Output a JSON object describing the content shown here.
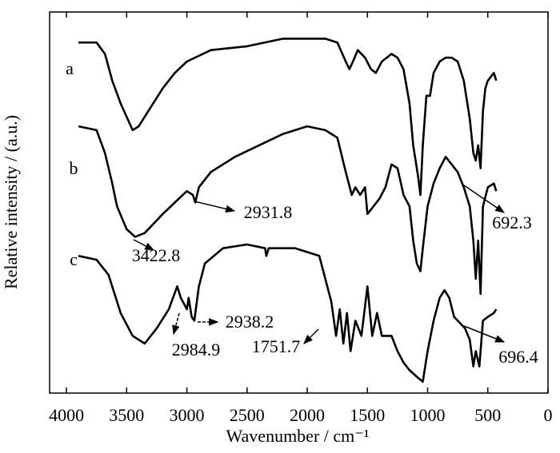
{
  "chart_data": {
    "type": "line",
    "x_label": "Wavenumber / cm⁻¹",
    "y_label": "Relative intensity / (a.u.)",
    "xlim": [
      4140,
      0
    ],
    "ylim": [
      0,
      100
    ],
    "xticks": [
      4000,
      3500,
      3000,
      2500,
      2000,
      1500,
      1000,
      500,
      0
    ],
    "series": [
      {
        "name": "a",
        "color": "#000000",
        "x": [
          3900,
          3750,
          3680,
          3620,
          3550,
          3450,
          3400,
          3300,
          3200,
          3100,
          3000,
          2800,
          2500,
          2200,
          2000,
          1850,
          1750,
          1680,
          1650,
          1620,
          1580,
          1520,
          1470,
          1430,
          1380,
          1300,
          1250,
          1200,
          1150,
          1120,
          1080,
          1060,
          1040,
          1010,
          980,
          950,
          900,
          850,
          800,
          750,
          700,
          650,
          620,
          600,
          580,
          560,
          540,
          520,
          500,
          450,
          430
        ],
        "values": [
          92,
          92,
          89,
          82,
          76,
          69,
          70,
          75,
          80,
          84,
          87,
          90,
          91,
          93,
          93,
          93,
          92,
          87,
          85,
          87,
          90,
          88,
          85,
          84,
          87,
          89,
          88,
          85,
          76,
          65,
          57,
          52,
          65,
          78,
          78,
          84,
          87,
          88,
          88,
          87,
          82,
          72,
          63,
          61,
          65,
          59,
          74,
          80,
          82,
          84,
          82
        ]
      },
      {
        "name": "b",
        "color": "#000000",
        "x": [
          3900,
          3750,
          3680,
          3620,
          3580,
          3500,
          3430,
          3350,
          3200,
          3100,
          3000,
          2950,
          2930,
          2900,
          2800,
          2600,
          2400,
          2200,
          2000,
          1850,
          1750,
          1680,
          1630,
          1600,
          1560,
          1520,
          1500,
          1450,
          1400,
          1350,
          1300,
          1250,
          1200,
          1150,
          1120,
          1090,
          1060,
          1040,
          1000,
          950,
          900,
          850,
          800,
          750,
          700,
          650,
          620,
          600,
          580,
          560,
          540,
          500,
          450,
          430
        ],
        "values": [
          70,
          69,
          63,
          55,
          49,
          43,
          41,
          42,
          47,
          50,
          53,
          52,
          50,
          54,
          58,
          62,
          65,
          68,
          70,
          69,
          67,
          58,
          52,
          54,
          52,
          54,
          47,
          49,
          51,
          54,
          60,
          59,
          52,
          49,
          40,
          34,
          32,
          38,
          49,
          55,
          59,
          62,
          60,
          58,
          54,
          49,
          40,
          30,
          40,
          26,
          49,
          54,
          55,
          53
        ]
      },
      {
        "name": "c",
        "color": "#000000",
        "x": [
          3900,
          3750,
          3650,
          3550,
          3450,
          3350,
          3250,
          3150,
          3080,
          3050,
          3000,
          2985,
          2960,
          2938,
          2900,
          2850,
          2700,
          2500,
          2350,
          2340,
          2320,
          2100,
          1900,
          1800,
          1760,
          1730,
          1700,
          1670,
          1640,
          1600,
          1550,
          1500,
          1460,
          1420,
          1380,
          1300,
          1250,
          1200,
          1150,
          1080,
          1040,
          1000,
          950,
          900,
          860,
          820,
          780,
          720,
          690,
          650,
          620,
          600,
          570,
          540,
          500,
          450,
          430
        ],
        "values": [
          36,
          35,
          31,
          21,
          15,
          13,
          17,
          22,
          28,
          25,
          22,
          25,
          20,
          19,
          28,
          34,
          38,
          39,
          38,
          36,
          38,
          38,
          36,
          24,
          15,
          22,
          13,
          21,
          11,
          19,
          15,
          28,
          15,
          21,
          15,
          15,
          11,
          8,
          6,
          4,
          3,
          11,
          19,
          25,
          27,
          25,
          20,
          18,
          17,
          14,
          7,
          11,
          7,
          19,
          20,
          21,
          22
        ]
      }
    ],
    "annotations": [
      "2931.8",
      "3422.8",
      "692.3",
      "2984.9",
      "2938.2",
      "1751.7",
      "696.4"
    ]
  }
}
